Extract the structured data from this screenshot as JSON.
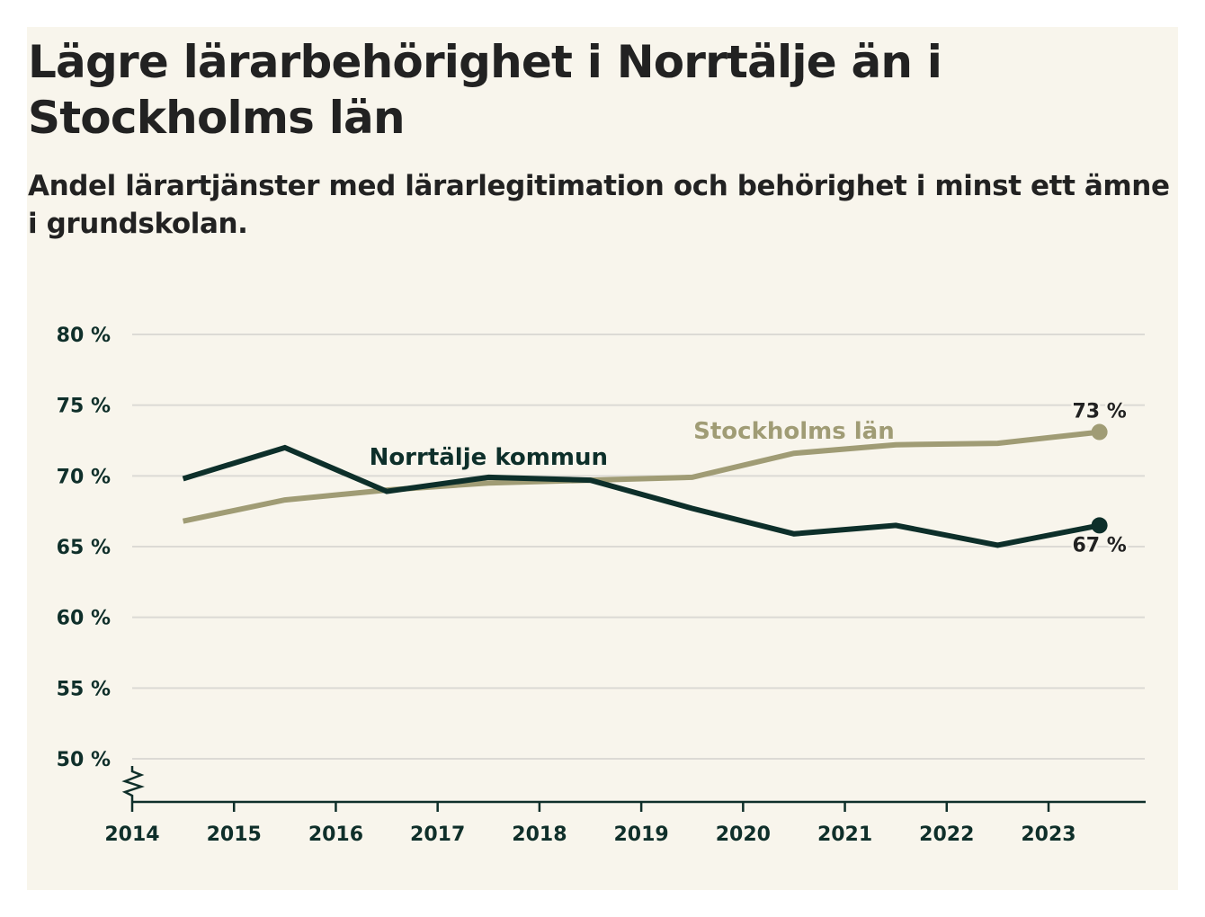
{
  "header": {
    "title": "Lägre lärarbehörighet i Norrtälje än i Stockholms län",
    "subtitle": "Andel lärartjänster med lärarlegitimation och behörighet i minst ett ämne i grundskolan."
  },
  "colors": {
    "background": "#f8f5ec",
    "grid": "#dcdad5",
    "axis": "#0f2f2a",
    "norrtalje": "#0d2f2a",
    "stockholm": "#a09c75"
  },
  "chart_data": {
    "type": "line",
    "title": "Lägre lärarbehörighet i Norrtälje än i Stockholms län",
    "subtitle": "Andel lärartjänster med lärarlegitimation och behörighet i minst ett ämne i grundskolan.",
    "xlabel": "",
    "ylabel": "",
    "x": [
      2014.5,
      2015.5,
      2016.5,
      2017.5,
      2018.5,
      2019.5,
      2020.5,
      2021.5,
      2022.5,
      2023.5
    ],
    "xlim": [
      2014,
      2024
    ],
    "x_ticks": [
      2014,
      2015,
      2016,
      2017,
      2018,
      2019,
      2020,
      2021,
      2022,
      2023
    ],
    "x_tick_labels": [
      "2014",
      "2015",
      "2016",
      "2017",
      "2018",
      "2019",
      "2020",
      "2021",
      "2022",
      "2023"
    ],
    "ylim": [
      47,
      80
    ],
    "y_ticks": [
      50,
      55,
      60,
      65,
      70,
      75,
      80
    ],
    "y_tick_labels": [
      "50 %",
      "55 %",
      "60 %",
      "65 %",
      "70 %",
      "75 %",
      "80 %"
    ],
    "y_axis_break": true,
    "grid": true,
    "legend": "inline-labels",
    "series": [
      {
        "name": "Norrtälje kommun",
        "color": "#0d2f2a",
        "values": [
          69.8,
          72.0,
          68.9,
          69.9,
          69.7,
          67.7,
          65.9,
          66.5,
          65.1,
          66.5
        ],
        "end_label": "67 %",
        "label_anchor_x": 2017.5
      },
      {
        "name": "Stockholms län",
        "color": "#a09c75",
        "values": [
          66.8,
          68.3,
          69.0,
          69.5,
          69.7,
          69.9,
          71.6,
          72.2,
          72.3,
          73.1
        ],
        "end_label": "73 %",
        "label_anchor_x": 2020.5
      }
    ]
  }
}
